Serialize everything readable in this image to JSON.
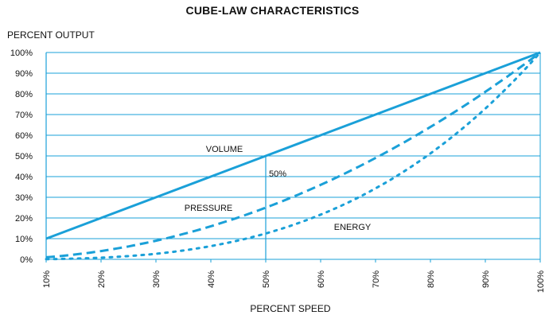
{
  "chart_data": {
    "type": "line",
    "title": "CUBE-LAW CHARACTERISTICS",
    "ylabel": "PERCENT OUTPUT",
    "xlabel": "PERCENT SPEED",
    "xlim": [
      10,
      100
    ],
    "ylim": [
      0,
      100
    ],
    "grid": true,
    "x_ticks": [
      "10%",
      "20%",
      "30%",
      "40%",
      "50%",
      "60%",
      "70%",
      "80%",
      "90%",
      "100%"
    ],
    "y_ticks": [
      "0%",
      "10%",
      "20%",
      "30%",
      "40%",
      "50%",
      "60%",
      "70%",
      "80%",
      "90%",
      "100%"
    ],
    "x": [
      10,
      20,
      30,
      40,
      50,
      60,
      70,
      80,
      90,
      100
    ],
    "series": [
      {
        "name": "VOLUME",
        "style": "solid",
        "values": [
          10,
          20,
          30,
          40,
          50,
          60,
          70,
          80,
          90,
          100
        ]
      },
      {
        "name": "PRESSURE",
        "style": "dashed",
        "values": [
          1,
          4,
          9,
          16,
          25,
          36,
          49,
          64,
          81,
          100
        ]
      },
      {
        "name": "ENERGY",
        "style": "dotted",
        "values": [
          0.1,
          0.8,
          2.7,
          6.4,
          12.5,
          21.6,
          34.3,
          51.2,
          72.9,
          100
        ]
      }
    ],
    "marker": {
      "x": 50,
      "label": "50%"
    },
    "colors": {
      "line": "#1aa0d8",
      "grid": "#1aa0d8"
    }
  }
}
